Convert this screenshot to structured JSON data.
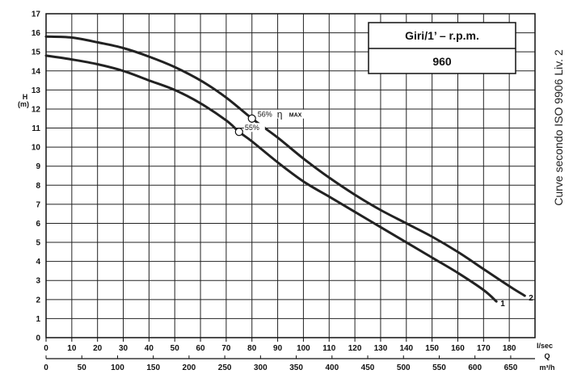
{
  "side_note": "Curve secondo ISO 9906 Liv. 2",
  "rpm_box": {
    "header": "Giri/1’ – r.p.m.",
    "value": "960"
  },
  "chart_data": {
    "type": "line",
    "title": "",
    "ylabel_top": "H",
    "ylabel_bottom": "(m)",
    "ylim": [
      0,
      17
    ],
    "y_ticks": [
      "0",
      "1",
      "2",
      "3",
      "4",
      "5",
      "6",
      "7",
      "8",
      "9",
      "10",
      "11",
      "12",
      "13",
      "14",
      "15",
      "16",
      "17"
    ],
    "x_lsec_unit": "l/sec",
    "xlim_lsec": [
      0,
      190
    ],
    "x_lsec_ticks": [
      "0",
      "10",
      "20",
      "30",
      "40",
      "50",
      "60",
      "70",
      "80",
      "90",
      "100",
      "110",
      "120",
      "130",
      "140",
      "150",
      "160",
      "170",
      "180"
    ],
    "q_label": "Q",
    "x_m3h_unit": "m³/h",
    "x_m3h_ticks": [
      "0",
      "50",
      "100",
      "150",
      "200",
      "250",
      "300",
      "350",
      "400",
      "450",
      "500",
      "550",
      "600",
      "650"
    ],
    "grid": true,
    "series": [
      {
        "name": "1",
        "x": [
          0,
          10,
          20,
          30,
          40,
          50,
          60,
          70,
          75,
          80,
          90,
          100,
          110,
          120,
          130,
          140,
          150,
          160,
          170,
          175
        ],
        "y": [
          14.8,
          14.6,
          14.35,
          14.0,
          13.5,
          13.0,
          12.3,
          11.4,
          10.8,
          10.3,
          9.2,
          8.2,
          7.4,
          6.6,
          5.8,
          5.0,
          4.2,
          3.4,
          2.5,
          1.9
        ]
      },
      {
        "name": "2",
        "x": [
          0,
          10,
          20,
          30,
          40,
          50,
          60,
          70,
          80,
          90,
          100,
          110,
          120,
          130,
          140,
          150,
          160,
          170,
          180,
          186
        ],
        "y": [
          15.8,
          15.75,
          15.5,
          15.2,
          14.75,
          14.2,
          13.5,
          12.6,
          11.5,
          10.5,
          9.4,
          8.4,
          7.5,
          6.7,
          6.0,
          5.3,
          4.5,
          3.6,
          2.7,
          2.2
        ]
      }
    ],
    "annotations": [
      {
        "text": "56%",
        "x": 80,
        "y": 11.5,
        "symbol": "η",
        "sub": "MAX"
      },
      {
        "text": "55%",
        "x": 75,
        "y": 10.8
      }
    ]
  }
}
